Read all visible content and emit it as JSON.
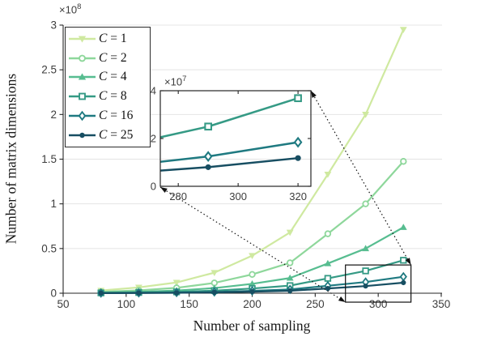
{
  "chart_data": {
    "type": "line",
    "title": "",
    "xlabel": "Number of sampling",
    "ylabel": "Number of matrix dimensions",
    "x": [
      80,
      110,
      140,
      170,
      200,
      230,
      260,
      290,
      320
    ],
    "series": [
      {
        "name": "C = 1",
        "color": "#cfe9a0",
        "marker": "triangle-down",
        "values": [
          3000000,
          6500000,
          12000000,
          23000000,
          42000000,
          68000000,
          133000000,
          200000000,
          295000000
        ],
        "in_inset": false
      },
      {
        "name": "C = 2",
        "color": "#8ed79b",
        "marker": "circle-open",
        "values": [
          1500000,
          3250000,
          6000000,
          11500000,
          21000000,
          34000000,
          66500000,
          100000000,
          147500000
        ],
        "in_inset": false
      },
      {
        "name": "C = 4",
        "color": "#57bd90",
        "marker": "triangle-up",
        "values": [
          750000,
          1625000,
          3000000,
          5750000,
          10500000,
          17000000,
          33250000,
          50000000,
          73750000
        ],
        "in_inset": false
      },
      {
        "name": "C = 8",
        "color": "#359a85",
        "marker": "square",
        "values": [
          375000,
          812500,
          1500000,
          2875000,
          5250000,
          8500000,
          16625000,
          25000000,
          36875000
        ],
        "in_inset": true
      },
      {
        "name": "C = 16",
        "color": "#1f7a81",
        "marker": "diamond",
        "values": [
          187500,
          406250,
          750000,
          1437500,
          2625000,
          4250000,
          8312500,
          12500000,
          18437500
        ],
        "in_inset": true
      },
      {
        "name": "C = 25",
        "color": "#174e62",
        "marker": "dot",
        "values": [
          120000,
          260000,
          480000,
          920000,
          1680000,
          2720000,
          5320000,
          8000000,
          11800000
        ],
        "in_inset": true
      }
    ],
    "main_axis": {
      "xlim": [
        50,
        350
      ],
      "ylim": [
        0,
        300000000
      ],
      "xticks": [
        50,
        100,
        150,
        200,
        250,
        300,
        350
      ],
      "xtick_labels": [
        "50",
        "100",
        "150",
        "200",
        "250",
        "300",
        "350"
      ],
      "yticks": [
        0,
        50000000,
        100000000,
        150000000,
        200000000,
        250000000,
        300000000
      ],
      "ytick_labels": [
        "0",
        "0.5",
        "1",
        "1.5",
        "2",
        "2.5",
        "3"
      ],
      "exponent_base": "×10",
      "exponent_sup": "8",
      "grid": "horizontal"
    },
    "inset_axis": {
      "xlim": [
        274,
        324.3
      ],
      "ylim": [
        0,
        40000000
      ],
      "xticks": [
        280,
        300,
        320
      ],
      "xtick_labels": [
        "280",
        "300",
        "320"
      ],
      "yticks": [
        0,
        20000000,
        40000000
      ],
      "ytick_labels": [
        "0",
        "2",
        "4"
      ],
      "exponent_base": "×10",
      "exponent_sup": "7"
    },
    "zoom_region": {
      "xmin": 274,
      "xmax": 326,
      "ymin": -10000000,
      "ymax": 31600000
    },
    "legend_position": "top-left",
    "colors": {
      "axis": "#262626",
      "tick_label": "#3d3d3d",
      "grid": "#e4e4e4",
      "annotation": "#111111"
    }
  }
}
